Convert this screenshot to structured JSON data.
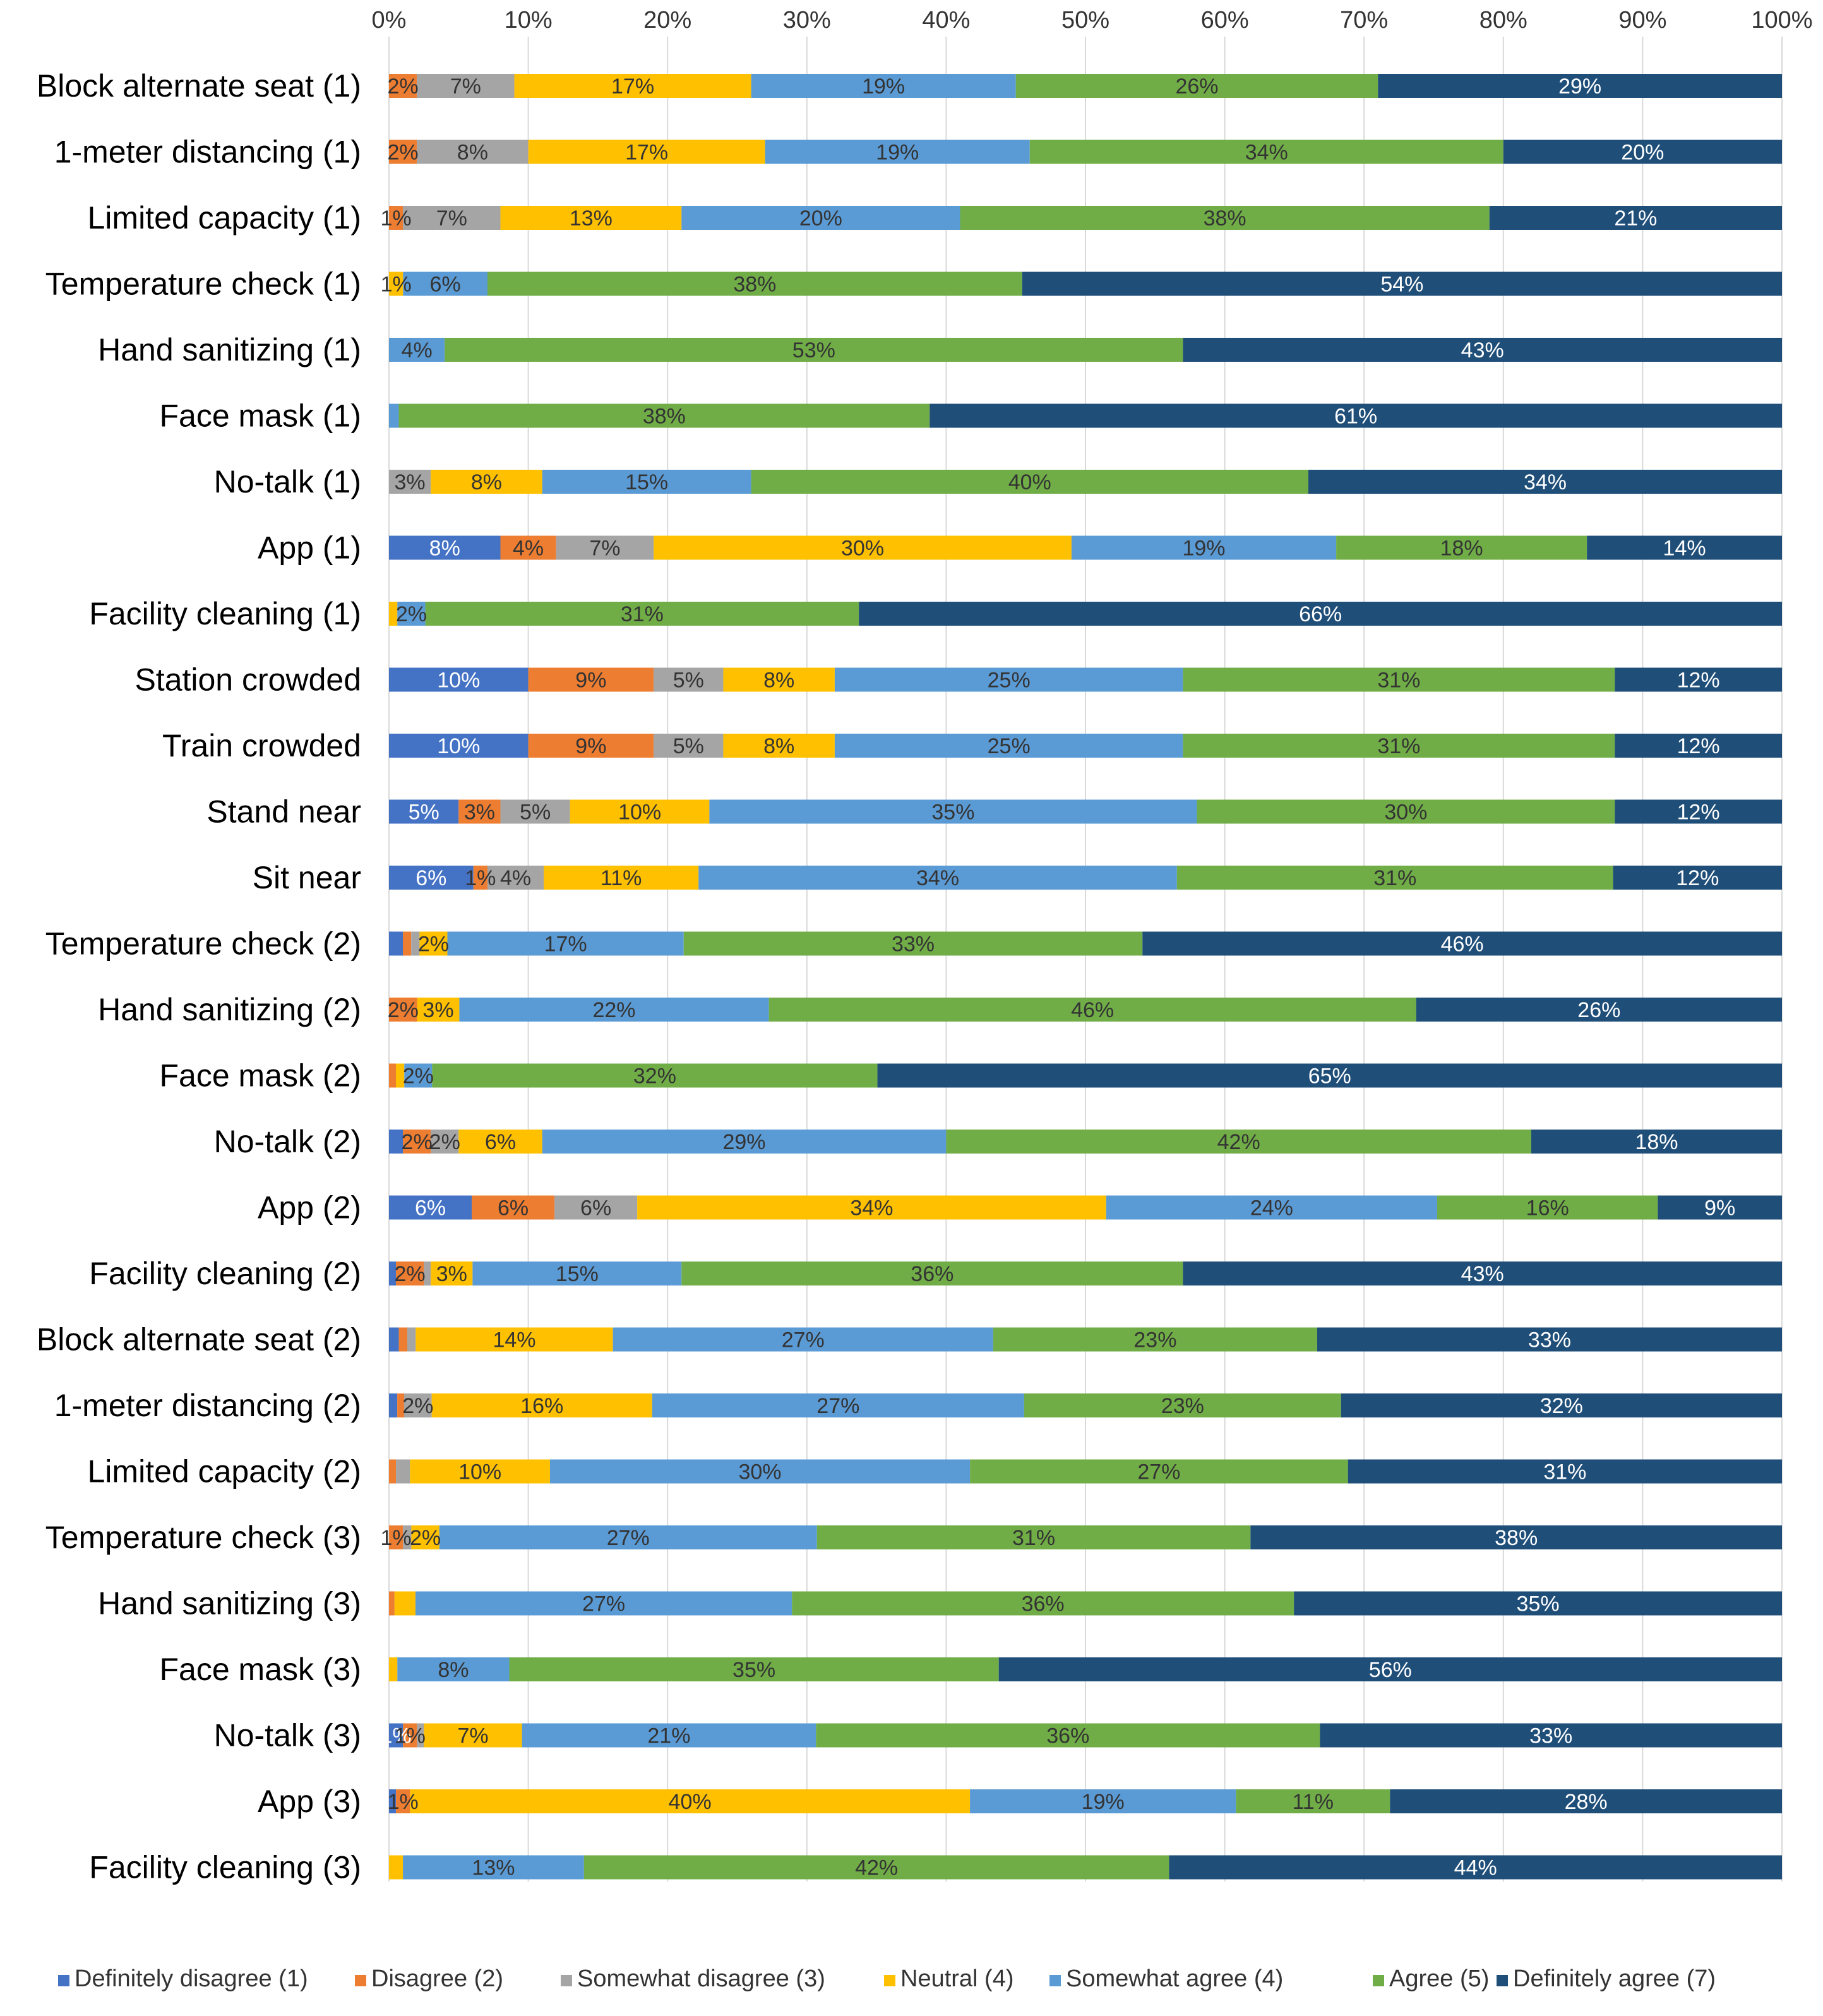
{
  "chart_data": {
    "type": "bar",
    "orientation": "horizontal",
    "stacked": "percent",
    "title": "",
    "xlabel": "",
    "ylabel": "",
    "xlim": [
      0,
      100
    ],
    "xticks": [
      "0%",
      "10%",
      "20%",
      "30%",
      "40%",
      "50%",
      "60%",
      "70%",
      "80%",
      "90%",
      "100%"
    ],
    "grid": true,
    "legend_position": "bottom",
    "categories": [
      "Block alternate seat (1)",
      "1-meter distancing (1)",
      "Limited capacity (1)",
      "Temperature check (1)",
      "Hand sanitizing (1)",
      "Face mask (1)",
      "No-talk (1)",
      "App (1)",
      "Facility cleaning (1)",
      "Station crowded",
      "Train crowded",
      "Stand near",
      "Sit near",
      "Temperature check (2)",
      "Hand sanitizing (2)",
      "Face mask (2)",
      "No-talk (2)",
      "App (2)",
      "Facility cleaning (2)",
      "Block alternate seat (2)",
      "1-meter distancing (2)",
      "Limited capacity (2)",
      "Temperature check (3)",
      "Hand sanitizing (3)",
      "Face mask (3)",
      "No-talk (3)",
      "App (3)",
      "Facility cleaning (3)"
    ],
    "series": [
      {
        "name": "Definitely disagree (1)",
        "color": "#4472c4",
        "values": [
          0,
          0,
          0,
          0,
          0,
          0,
          0,
          8,
          0,
          10,
          10,
          5,
          6,
          1,
          0,
          0,
          1,
          6,
          0.5,
          0.7,
          0.6,
          0,
          0,
          0,
          0,
          1,
          0.5,
          0
        ]
      },
      {
        "name": "Disagree (2)",
        "color": "#ed7d31",
        "values": [
          2,
          2,
          1,
          0,
          0,
          0,
          0,
          4,
          0,
          9,
          9,
          3,
          1,
          0.6,
          2,
          0.5,
          2,
          6,
          2,
          0.6,
          0.5,
          0.5,
          1,
          0.4,
          0,
          1,
          1,
          0
        ]
      },
      {
        "name": "Somewhat disagree (3)",
        "color": "#a5a5a5",
        "values": [
          7,
          8,
          7,
          0,
          0,
          0,
          3,
          7,
          0,
          5,
          5,
          5,
          4,
          0.6,
          0,
          0,
          2,
          6,
          0.5,
          0.6,
          2,
          1,
          0.6,
          0,
          0,
          0.5,
          0,
          0
        ]
      },
      {
        "name": "Neutral (4)",
        "color": "#ffc000",
        "values": [
          17,
          17,
          13,
          1,
          0,
          0,
          8,
          30,
          0.6,
          8,
          8,
          10,
          11,
          2,
          3,
          0.6,
          6,
          34,
          3,
          14,
          16,
          10,
          2,
          1.5,
          0.6,
          7,
          40,
          1
        ]
      },
      {
        "name": "Somewhat agree (4)",
        "color": "#5b9bd5",
        "values": [
          19,
          19,
          20,
          6,
          4,
          0.7,
          15,
          19,
          2,
          25,
          25,
          35,
          34,
          17,
          22,
          2,
          29,
          24,
          15,
          27,
          27,
          30,
          27,
          27,
          8,
          21,
          19,
          13
        ]
      },
      {
        "name": "Agree (5)",
        "color": "#70ad47",
        "values": [
          26,
          34,
          38,
          38,
          53,
          38,
          40,
          18,
          31,
          31,
          31,
          30,
          31,
          33,
          46,
          32,
          42,
          16,
          36,
          23,
          23,
          27,
          31,
          36,
          35,
          36,
          11,
          42
        ]
      },
      {
        "name": "Definitely agree (7)",
        "color": "#1f4e79",
        "values": [
          29,
          20,
          21,
          54,
          43,
          61,
          34,
          14,
          66,
          12,
          12,
          12,
          12,
          46,
          26,
          65,
          18,
          9,
          43,
          33,
          32,
          31,
          38,
          35,
          56,
          33,
          28,
          44
        ]
      }
    ],
    "data_labels": [
      [
        "",
        "2%",
        "7%",
        "17%",
        "19%",
        "26%",
        "29%"
      ],
      [
        "",
        "2%",
        "8%",
        "17%",
        "19%",
        "34%",
        "20%"
      ],
      [
        "",
        "1%",
        "7%",
        "13%",
        "20%",
        "38%",
        "21%"
      ],
      [
        "",
        "",
        "",
        "1%",
        "6%",
        "38%",
        "54%"
      ],
      [
        "",
        "",
        "",
        "",
        "4%",
        "53%",
        "43%"
      ],
      [
        "",
        "",
        "",
        "",
        "",
        "38%",
        "61%"
      ],
      [
        "",
        "",
        "3%",
        "8%",
        "15%",
        "40%",
        "34%"
      ],
      [
        "8%",
        "4%",
        "7%",
        "30%",
        "19%",
        "18%",
        "14%"
      ],
      [
        "",
        "",
        "",
        "",
        "2%",
        "31%",
        "66%"
      ],
      [
        "10%",
        "9%",
        "5%",
        "8%",
        "25%",
        "31%",
        "12%"
      ],
      [
        "10%",
        "9%",
        "5%",
        "8%",
        "25%",
        "31%",
        "12%"
      ],
      [
        "5%",
        "3%",
        "5%",
        "10%",
        "35%",
        "30%",
        "12%"
      ],
      [
        "6%",
        "1%",
        "4%",
        "11%",
        "34%",
        "31%",
        "12%"
      ],
      [
        "",
        "",
        "",
        "2%",
        "17%",
        "33%",
        "46%"
      ],
      [
        "",
        "2%",
        "",
        "3%",
        "22%",
        "46%",
        "26%"
      ],
      [
        "",
        "",
        "",
        "",
        "2%",
        "32%",
        "65%"
      ],
      [
        "",
        "2%",
        "2%",
        "6%",
        "29%",
        "42%",
        "18%"
      ],
      [
        "6%",
        "6%",
        "6%",
        "34%",
        "24%",
        "16%",
        "9%"
      ],
      [
        "",
        "2%",
        "",
        "3%",
        "15%",
        "36%",
        "43%"
      ],
      [
        "",
        "",
        "",
        "14%",
        "27%",
        "23%",
        "33%"
      ],
      [
        "",
        "",
        "2%",
        "16%",
        "27%",
        "23%",
        "32%"
      ],
      [
        "",
        "",
        "",
        "10%",
        "30%",
        "27%",
        "31%"
      ],
      [
        "",
        "1%",
        "",
        "2%",
        "27%",
        "31%",
        "38%"
      ],
      [
        "",
        "",
        "",
        "",
        "27%",
        "36%",
        "35%"
      ],
      [
        "",
        "",
        "",
        "",
        "8%",
        "35%",
        "56%"
      ],
      [
        "1%",
        "1%",
        "",
        "7%",
        "21%",
        "36%",
        "33%"
      ],
      [
        "",
        "1%",
        "",
        "40%",
        "19%",
        "11%",
        "28%"
      ],
      [
        "",
        "",
        "",
        "",
        "13%",
        "42%",
        "44%"
      ]
    ]
  }
}
